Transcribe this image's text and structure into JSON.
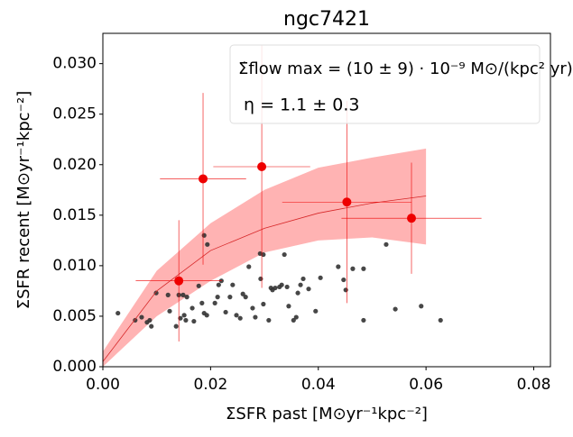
{
  "chart_data": {
    "type": "scatter",
    "title": "ngc7421",
    "xlabel": "ΣSFR past  [M⊙yr⁻¹kpc⁻²]",
    "ylabel": "ΣSFR recent  [M⊙yr⁻¹kpc⁻²]",
    "annotations": [
      "Σ̇flow max = (10 ± 9) · 10⁻⁹ M⊙/(kpc² yr)",
      "η = 1.1 ± 0.3"
    ],
    "xlim": [
      0,
      0.0831
    ],
    "ylim": [
      0,
      0.033
    ],
    "xticks": [
      {
        "value": 0,
        "label": "0.00"
      },
      0.02,
      0.04,
      0.06,
      0.08
    ],
    "yticks": [
      {
        "value": 0,
        "label": "0.000"
      },
      0.005,
      {
        "value": 0.01,
        "label": "0.010"
      },
      0.015,
      {
        "value": 0.02,
        "label": "0.020"
      },
      0.025,
      {
        "value": 0.03,
        "label": "0.030"
      }
    ],
    "points": {
      "color": "#333333",
      "x": [
        0.0028,
        0.006,
        0.0072,
        0.0082,
        0.0087,
        0.009,
        0.0099,
        0.0121,
        0.0124,
        0.0136,
        0.0141,
        0.0144,
        0.0149,
        0.0156,
        0.0151,
        0.0154,
        0.0166,
        0.0169,
        0.0178,
        0.0184,
        0.0188,
        0.0193,
        0.0188,
        0.0194,
        0.0208,
        0.0213,
        0.0215,
        0.022,
        0.0228,
        0.0236,
        0.0241,
        0.0248,
        0.0255,
        0.026,
        0.0265,
        0.0271,
        0.0278,
        0.0283,
        0.0292,
        0.0293,
        0.0298,
        0.0298,
        0.0308,
        0.0312,
        0.0315,
        0.032,
        0.0328,
        0.0332,
        0.0337,
        0.0342,
        0.0345,
        0.0354,
        0.0359,
        0.0362,
        0.0367,
        0.0372,
        0.0382,
        0.0395,
        0.0404,
        0.0437,
        0.0447,
        0.0451,
        0.0464,
        0.0484,
        0.0484,
        0.0526,
        0.0543,
        0.0591,
        0.0627
      ],
      "y": [
        0.0053,
        0.0046,
        0.0049,
        0.0044,
        0.0046,
        0.004,
        0.0073,
        0.0071,
        0.0055,
        0.004,
        0.0071,
        0.0048,
        0.0071,
        0.0069,
        0.0051,
        0.0046,
        0.0058,
        0.0045,
        0.008,
        0.0063,
        0.0053,
        0.0051,
        0.013,
        0.0121,
        0.0063,
        0.0069,
        0.0081,
        0.0085,
        0.0054,
        0.0069,
        0.0081,
        0.0051,
        0.0048,
        0.0072,
        0.0069,
        0.0099,
        0.0058,
        0.0049,
        0.0112,
        0.0087,
        0.0111,
        0.0062,
        0.0046,
        0.0078,
        0.0076,
        0.0078,
        0.0079,
        0.0081,
        0.0111,
        0.0079,
        0.006,
        0.0046,
        0.0049,
        0.0073,
        0.0081,
        0.0087,
        0.0077,
        0.0055,
        0.0088,
        0.0099,
        0.0086,
        0.0076,
        0.0097,
        0.0097,
        0.0046,
        0.0121,
        0.0057,
        0.006,
        0.0046
      ]
    },
    "highlighted": {
      "color": "#ee0000",
      "x": [
        0.0141,
        0.0186,
        0.0295,
        0.0453,
        0.0573
      ],
      "y": [
        0.0085,
        0.0186,
        0.0198,
        0.0163,
        0.0147
      ],
      "xerr": [
        0.008,
        0.008,
        0.009,
        0.012,
        0.013
      ],
      "yerr": [
        0.006,
        0.0085,
        0.012,
        0.01,
        0.0055
      ]
    },
    "model": {
      "color": "#d62728",
      "band_color": "#ffb3b3",
      "x": [
        0,
        0.01,
        0.02,
        0.03,
        0.04,
        0.05,
        0.06
      ],
      "y": [
        0.0005,
        0.0075,
        0.0115,
        0.0137,
        0.0152,
        0.0162,
        0.0169
      ],
      "lower": [
        0,
        0.005,
        0.0085,
        0.0113,
        0.0125,
        0.0128,
        0.0121
      ],
      "upper": [
        0.0015,
        0.0095,
        0.0142,
        0.0175,
        0.0197,
        0.0207,
        0.0216
      ]
    }
  }
}
